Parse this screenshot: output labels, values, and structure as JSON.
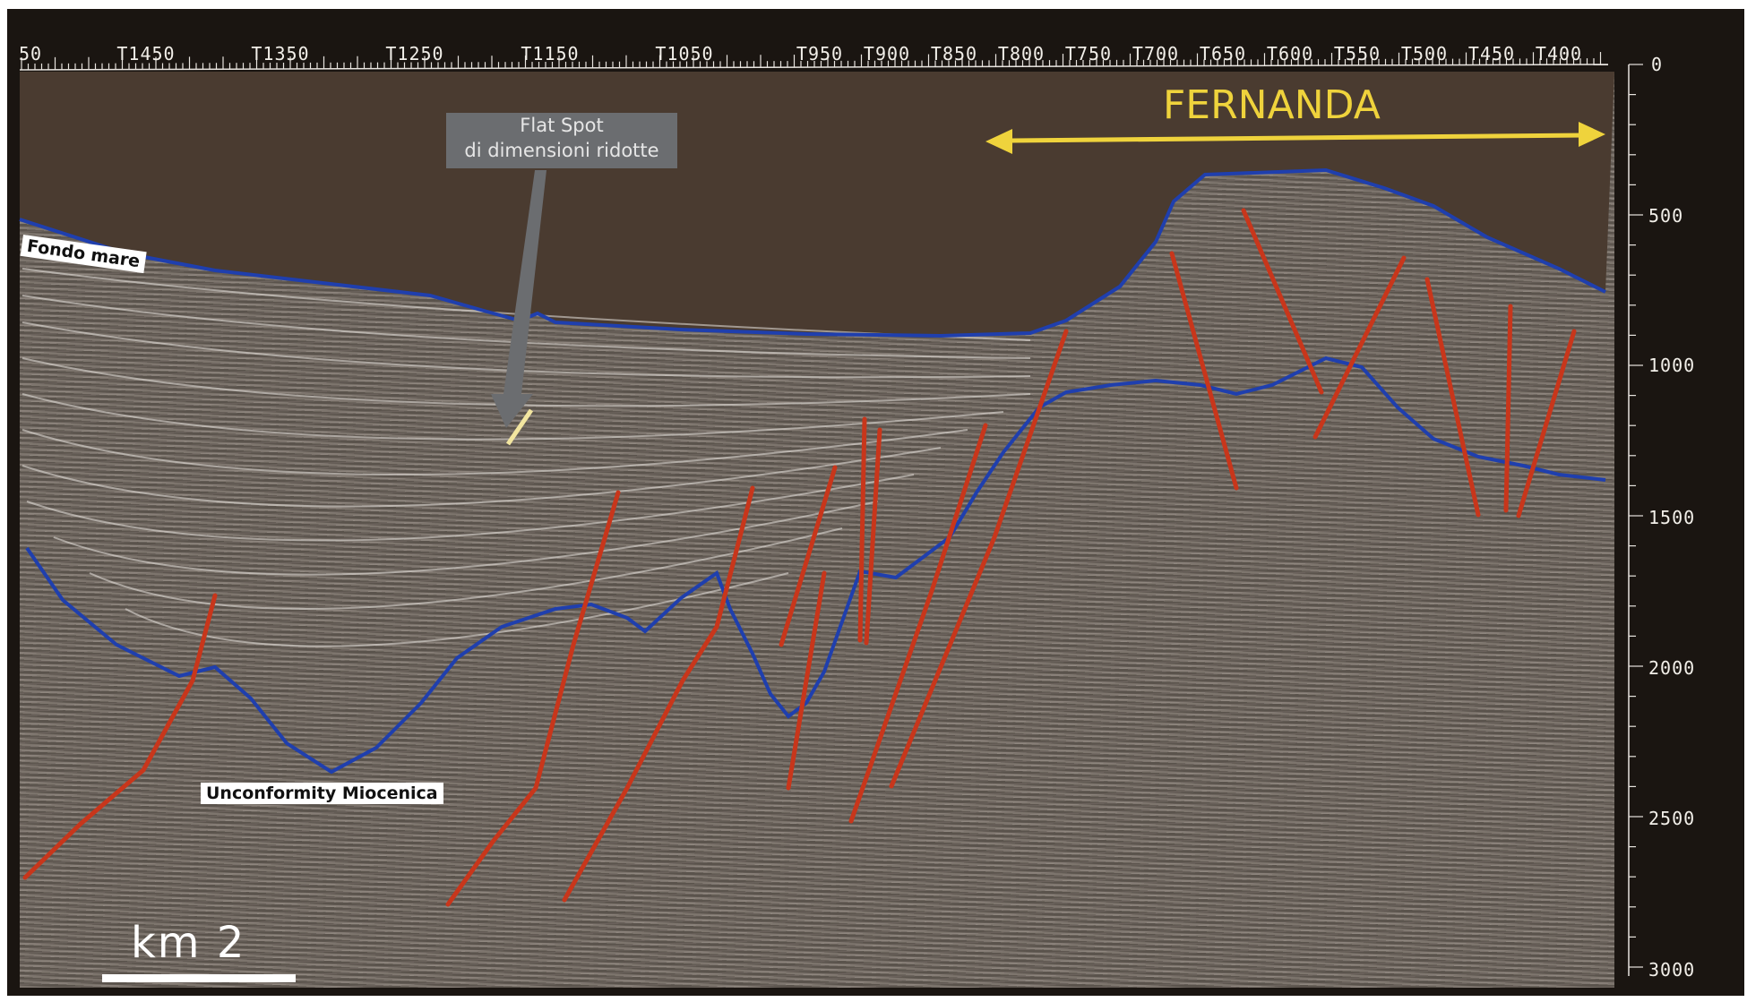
{
  "trace_labels": [
    "50",
    "T1450",
    "T1350",
    "T1250",
    "T1150",
    "T1050",
    "T950",
    "T900",
    "T850",
    "T800",
    "T750",
    "T700",
    "T650",
    "T600",
    "T550",
    "T500",
    "T450",
    "T400"
  ],
  "depth_labels": [
    "0",
    "500",
    "1000",
    "1500",
    "2000",
    "2500",
    "3000"
  ],
  "labels": {
    "seafloor": "Fondo mare",
    "unconformity": "Unconformity Miocenica",
    "callout_line1": "Flat  Spot",
    "callout_line2": "di dimensioni ridotte",
    "fernanda": "FERNANDA",
    "scale": "km  2"
  },
  "colors": {
    "horizon": "#1f3fae",
    "fault": "#c8361b",
    "arrow": "#efd33c",
    "flat_spot": "#f3e6a0",
    "water": "#4a3b30"
  }
}
